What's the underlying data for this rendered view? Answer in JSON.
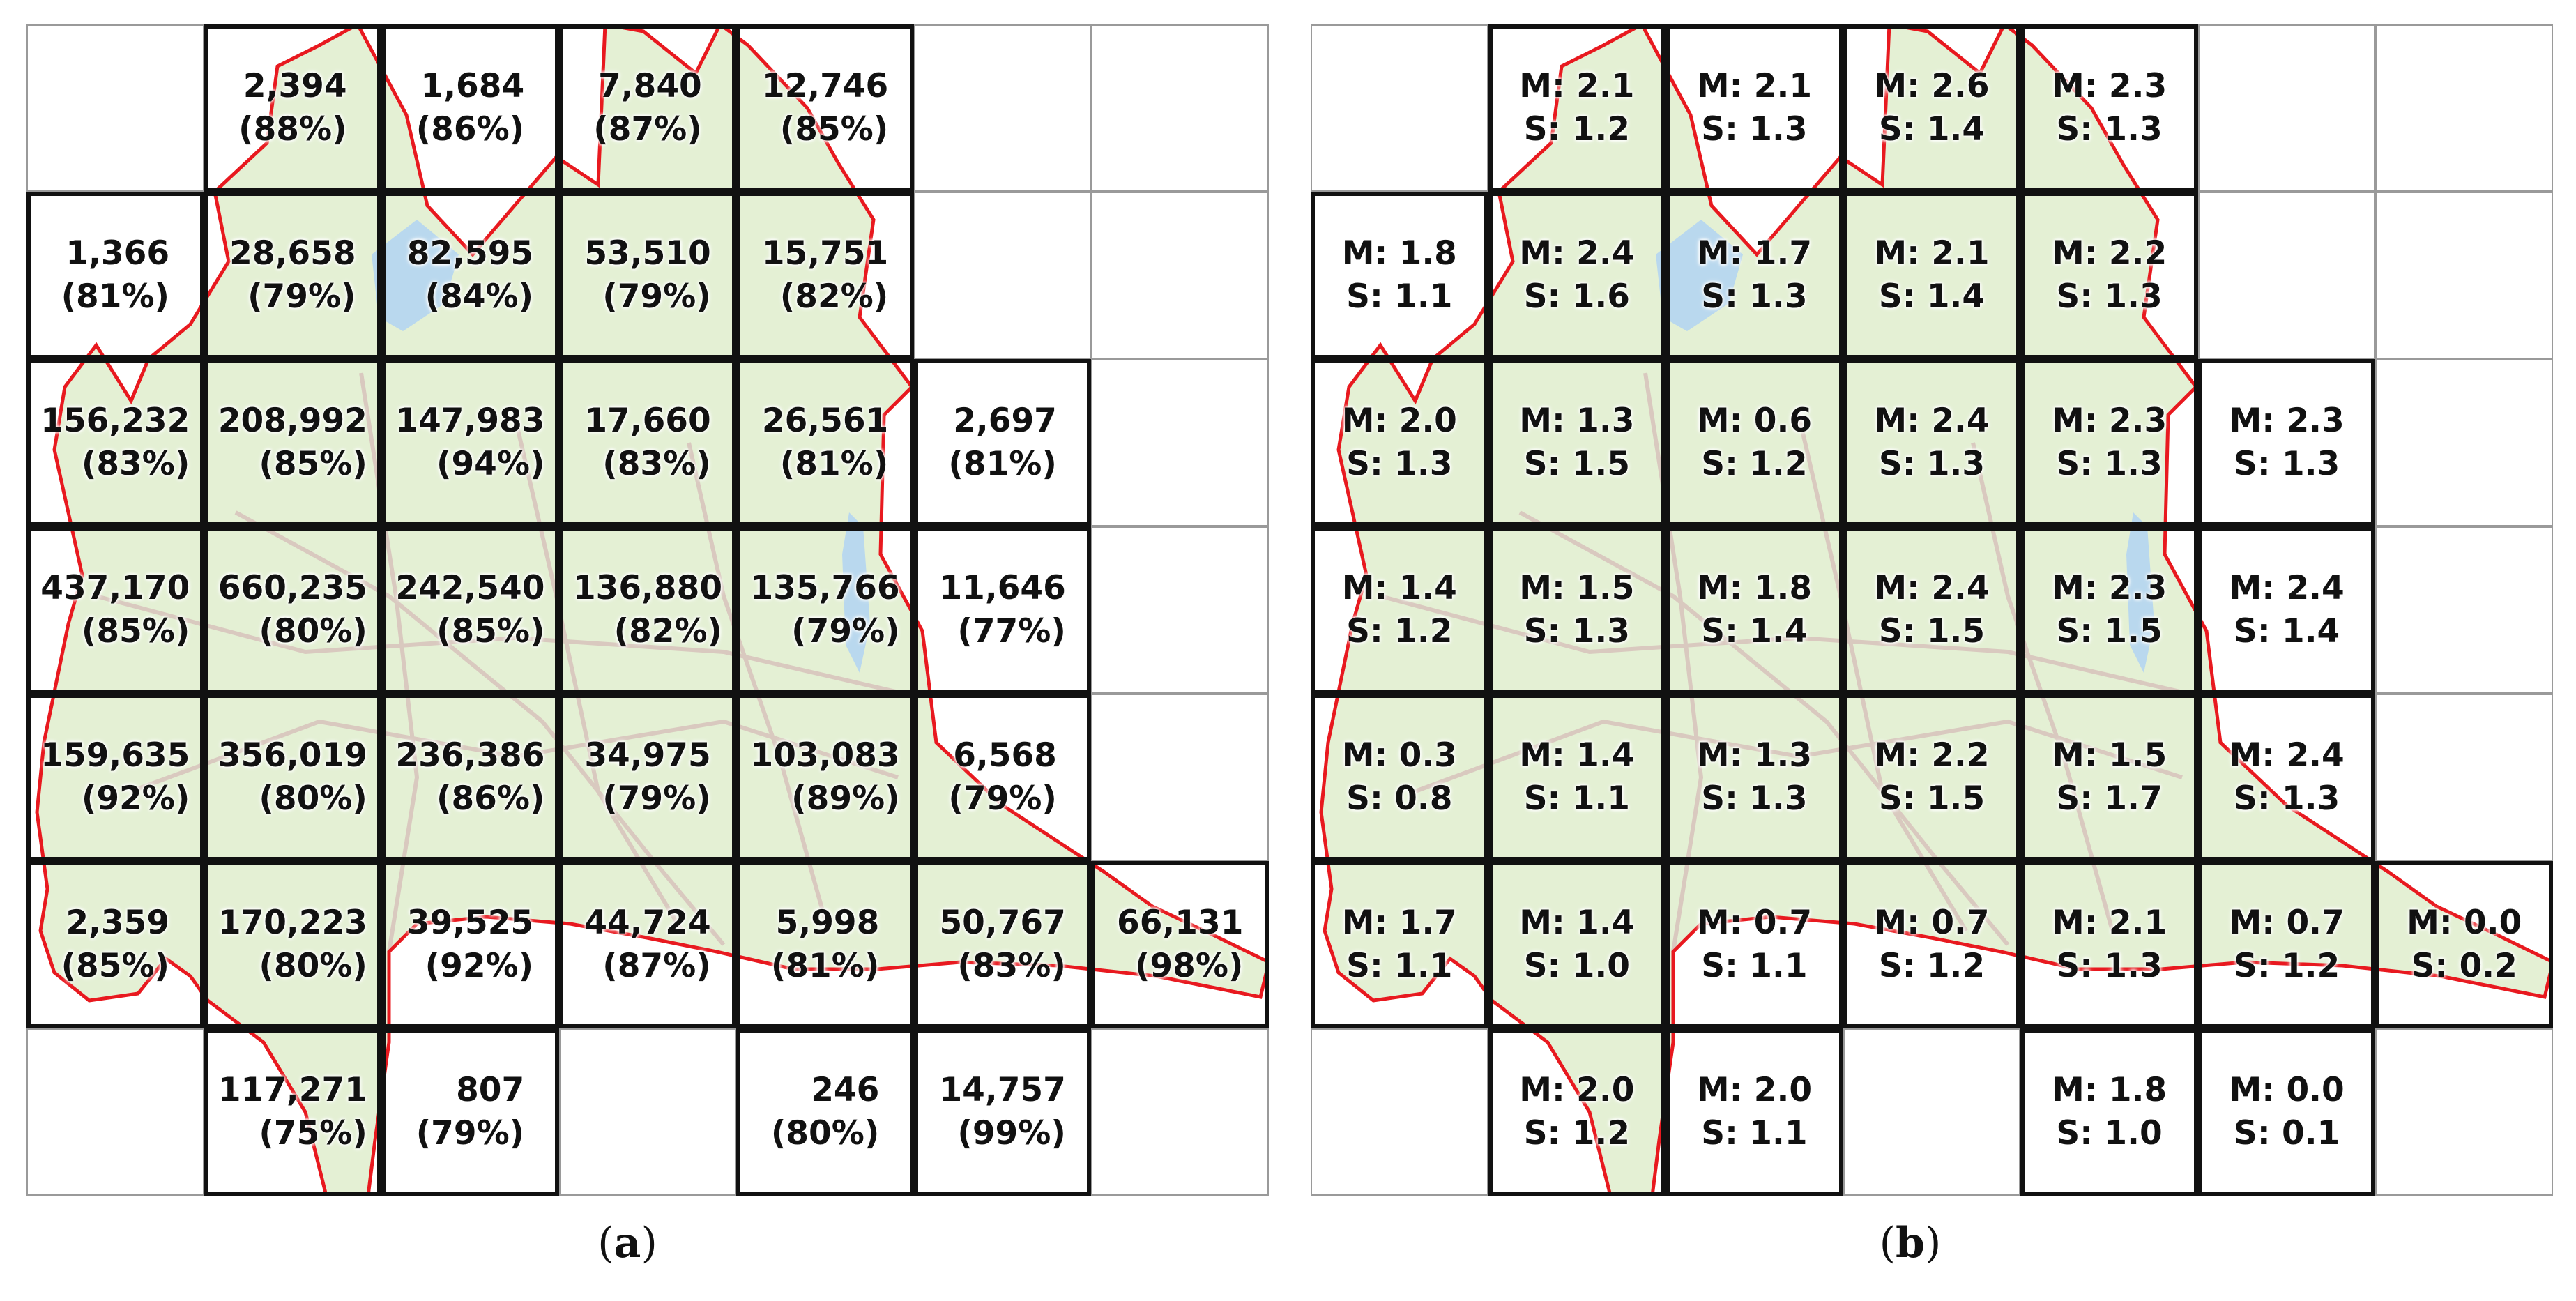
{
  "panels": [
    {
      "id": "a",
      "caption_letter": "a",
      "rows": [
        [
          null,
          {
            "line1": "2,394",
            "line2": "(88%)"
          },
          {
            "line1": "1,684",
            "line2": "(86%)"
          },
          {
            "line1": "7,840",
            "line2": "(87%)"
          },
          {
            "line1": "12,746",
            "line2": "(85%)"
          },
          null,
          null
        ],
        [
          {
            "line1": "1,366",
            "line2": "(81%)"
          },
          {
            "line1": "28,658",
            "line2": "(79%)"
          },
          {
            "line1": "82,595",
            "line2": "(84%)"
          },
          {
            "line1": "53,510",
            "line2": "(79%)"
          },
          {
            "line1": "15,751",
            "line2": "(82%)"
          },
          null,
          null
        ],
        [
          {
            "line1": "156,232",
            "line2": "(83%)"
          },
          {
            "line1": "208,992",
            "line2": "(85%)"
          },
          {
            "line1": "147,983",
            "line2": "(94%)"
          },
          {
            "line1": "17,660",
            "line2": "(83%)"
          },
          {
            "line1": "26,561",
            "line2": "(81%)"
          },
          {
            "line1": "2,697",
            "line2": "(81%)"
          },
          null
        ],
        [
          {
            "line1": "437,170",
            "line2": "(85%)"
          },
          {
            "line1": "660,235",
            "line2": "(80%)"
          },
          {
            "line1": "242,540",
            "line2": "(85%)"
          },
          {
            "line1": "136,880",
            "line2": "(82%)"
          },
          {
            "line1": "135,766",
            "line2": "(79%)"
          },
          {
            "line1": "11,646",
            "line2": "(77%)"
          },
          null
        ],
        [
          {
            "line1": "159,635",
            "line2": "(92%)"
          },
          {
            "line1": "356,019",
            "line2": "(80%)"
          },
          {
            "line1": "236,386",
            "line2": "(86%)"
          },
          {
            "line1": "34,975",
            "line2": "(79%)"
          },
          {
            "line1": "103,083",
            "line2": "(89%)"
          },
          {
            "line1": "6,568",
            "line2": "(79%)"
          },
          null
        ],
        [
          {
            "line1": "2,359",
            "line2": "(85%)"
          },
          {
            "line1": "170,223",
            "line2": "(80%)"
          },
          {
            "line1": "39,525",
            "line2": "(92%)"
          },
          {
            "line1": "44,724",
            "line2": "(87%)"
          },
          {
            "line1": "5,998",
            "line2": "(81%)"
          },
          {
            "line1": "50,767",
            "line2": "(83%)"
          },
          {
            "line1": "66,131",
            "line2": "(98%)"
          }
        ],
        [
          null,
          {
            "line1": "117,271",
            "line2": "(75%)"
          },
          {
            "line1": "807",
            "line2": "(79%)"
          },
          null,
          {
            "line1": "246",
            "line2": "(80%)"
          },
          {
            "line1": "14,757",
            "line2": "(99%)"
          },
          null
        ]
      ]
    },
    {
      "id": "b",
      "caption_letter": "b",
      "rows": [
        [
          null,
          {
            "line1": "M: 2.1",
            "line2": "S: 1.2"
          },
          {
            "line1": "M: 2.1",
            "line2": "S: 1.3"
          },
          {
            "line1": "M: 2.6",
            "line2": "S: 1.4"
          },
          {
            "line1": "M: 2.3",
            "line2": "S: 1.3"
          },
          null,
          null
        ],
        [
          {
            "line1": "M: 1.8",
            "line2": "S: 1.1"
          },
          {
            "line1": "M: 2.4",
            "line2": "S: 1.6"
          },
          {
            "line1": "M: 1.7",
            "line2": "S: 1.3"
          },
          {
            "line1": "M: 2.1",
            "line2": "S: 1.4"
          },
          {
            "line1": "M: 2.2",
            "line2": "S: 1.3"
          },
          null,
          null
        ],
        [
          {
            "line1": "M: 2.0",
            "line2": "S: 1.3"
          },
          {
            "line1": "M: 1.3",
            "line2": "S: 1.5"
          },
          {
            "line1": "M: 0.6",
            "line2": "S: 1.2"
          },
          {
            "line1": "M: 2.4",
            "line2": "S: 1.3"
          },
          {
            "line1": "M: 2.3",
            "line2": "S: 1.3"
          },
          {
            "line1": "M: 2.3",
            "line2": "S: 1.3"
          },
          null
        ],
        [
          {
            "line1": "M: 1.4",
            "line2": "S: 1.2"
          },
          {
            "line1": "M: 1.5",
            "line2": "S: 1.3"
          },
          {
            "line1": "M: 1.8",
            "line2": "S: 1.4"
          },
          {
            "line1": "M: 2.4",
            "line2": "S: 1.5"
          },
          {
            "line1": "M: 2.3",
            "line2": "S: 1.5"
          },
          {
            "line1": "M: 2.4",
            "line2": "S: 1.4"
          },
          null
        ],
        [
          {
            "line1": "M: 0.3",
            "line2": "S: 0.8"
          },
          {
            "line1": "M: 1.4",
            "line2": "S: 1.1"
          },
          {
            "line1": "M: 1.3",
            "line2": "S: 1.3"
          },
          {
            "line1": "M: 2.2",
            "line2": "S: 1.5"
          },
          {
            "line1": "M: 1.5",
            "line2": "S: 1.7"
          },
          {
            "line1": "M: 2.4",
            "line2": "S: 1.3"
          },
          null
        ],
        [
          {
            "line1": "M: 1.7",
            "line2": "S: 1.1"
          },
          {
            "line1": "M: 1.4",
            "line2": "S: 1.0"
          },
          {
            "line1": "M: 0.7",
            "line2": "S: 1.1"
          },
          {
            "line1": "M: 0.7",
            "line2": "S: 1.2"
          },
          {
            "line1": "M: 2.1",
            "line2": "S: 1.3"
          },
          {
            "line1": "M: 0.7",
            "line2": "S: 1.2"
          },
          {
            "line1": "M: 0.0",
            "line2": "S: 0.2"
          }
        ],
        [
          null,
          {
            "line1": "M: 2.0",
            "line2": "S: 1.2"
          },
          {
            "line1": "M: 2.0",
            "line2": "S: 1.1"
          },
          null,
          {
            "line1": "M: 1.8",
            "line2": "S: 1.0"
          },
          {
            "line1": "M: 0.0",
            "line2": "S: 0.1"
          },
          null
        ]
      ]
    }
  ],
  "colors": {
    "boundary": "#e8191f",
    "land": "#e4f0d4",
    "land_dark": "#cfe6b4",
    "water": "#b9d8ee",
    "roads": "#d9c9bf",
    "cell_border_occupied": "#111111",
    "cell_border_empty": "#9a9a9a"
  }
}
